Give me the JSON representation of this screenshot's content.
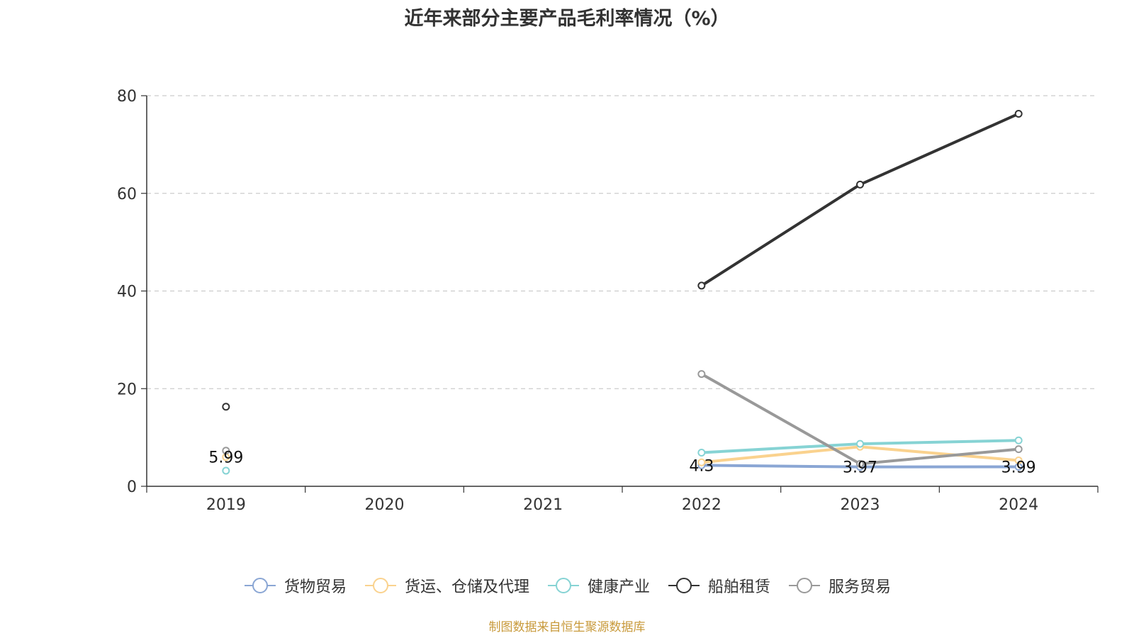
{
  "chart_data": {
    "type": "line",
    "title": "近年来部分主要产品毛利率情况（%）",
    "categories": [
      "2019",
      "2020",
      "2021",
      "2022",
      "2023",
      "2024"
    ],
    "ylim": [
      0,
      80
    ],
    "yticks": [
      0,
      20,
      40,
      60,
      80
    ],
    "grid": true,
    "legend_position": "bottom",
    "series": [
      {
        "name": "货物贸易",
        "color": "#8aa6d4",
        "values": [
          null,
          null,
          null,
          4.3,
          3.97,
          3.99
        ],
        "labels": [
          "",
          "",
          "",
          "4.3",
          "3.97",
          "3.99"
        ]
      },
      {
        "name": "货运、仓储及代理",
        "color": "#fad28e",
        "values": [
          5.99,
          null,
          null,
          4.9,
          8.1,
          5.3
        ],
        "labels": [
          "5.99",
          "",
          "",
          "",
          "",
          ""
        ]
      },
      {
        "name": "健康产业",
        "color": "#86d3d4",
        "values": [
          3.2,
          null,
          null,
          6.9,
          8.7,
          9.4
        ],
        "labels": [
          "",
          "",
          "",
          "",
          "",
          ""
        ]
      },
      {
        "name": "船舶租赁",
        "color": "#333333",
        "values": [
          16.3,
          null,
          null,
          41.1,
          61.8,
          76.3
        ],
        "labels": [
          "",
          "",
          "",
          "",
          "",
          ""
        ]
      },
      {
        "name": "服务贸易",
        "color": "#999999",
        "values": [
          7.3,
          null,
          null,
          23.0,
          4.6,
          7.6
        ],
        "labels": [
          "",
          "",
          "",
          "",
          "",
          ""
        ]
      }
    ]
  },
  "source": "制图数据来自恒生聚源数据库"
}
